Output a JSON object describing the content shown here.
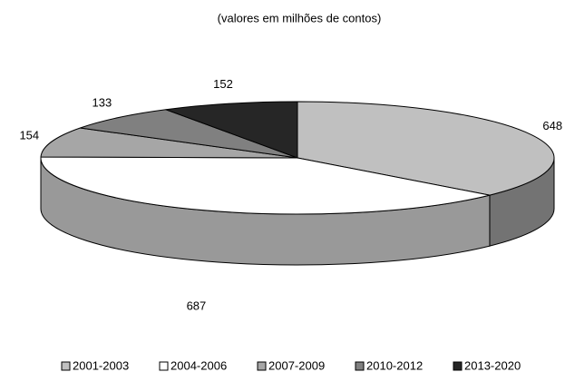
{
  "chart_data": {
    "type": "pie",
    "title": "(valores em milhões de contos)",
    "categories": [
      "2001-2003",
      "2004-2006",
      "2007-2009",
      "2010-2012",
      "2013-2020"
    ],
    "values": [
      648,
      687,
      154,
      133,
      152
    ],
    "colors": [
      "#c0c0c0",
      "#ffffff",
      "#a6a6a6",
      "#808080",
      "#262626"
    ],
    "legend": "bottom"
  }
}
